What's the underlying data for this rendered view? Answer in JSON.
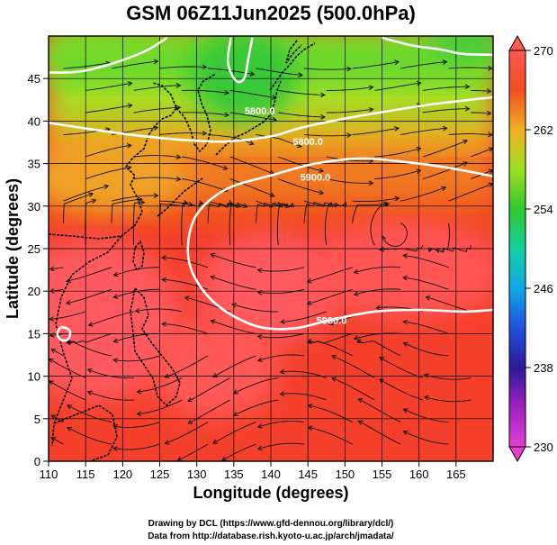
{
  "title": "GSM 06Z11Jun2025 (500.0hPa)",
  "chart_data": {
    "type": "heatmap",
    "title": "GSM 06Z11Jun2025 (500.0hPa)",
    "xlabel": "Longitude (degrees)",
    "ylabel": "Latitude  (degrees)",
    "xlim": [
      110,
      170
    ],
    "ylim": [
      0,
      50
    ],
    "x_ticks": [
      110,
      115,
      120,
      125,
      130,
      135,
      140,
      145,
      150,
      155,
      160,
      165
    ],
    "y_ticks": [
      0,
      5,
      10,
      15,
      20,
      25,
      30,
      35,
      40,
      45
    ],
    "grid": true,
    "colorbar": {
      "min": 230,
      "max": 270,
      "labels": [
        270,
        262,
        254,
        246,
        238,
        230
      ],
      "stops": [
        {
          "value": 230,
          "color": "#e040d0"
        },
        {
          "value": 234,
          "color": "#a020c0"
        },
        {
          "value": 238,
          "color": "#2a1a9a"
        },
        {
          "value": 242,
          "color": "#2050e0"
        },
        {
          "value": 246,
          "color": "#10a8e8"
        },
        {
          "value": 250,
          "color": "#10d0a0"
        },
        {
          "value": 254,
          "color": "#30c830"
        },
        {
          "value": 258,
          "color": "#9ce020"
        },
        {
          "value": 262,
          "color": "#f0b020"
        },
        {
          "value": 266,
          "color": "#f05020"
        },
        {
          "value": 270,
          "color": "#ff5555"
        }
      ]
    },
    "contours": [
      {
        "label": "5800.0",
        "points": [
          [
            110,
            39.8
          ],
          [
            116,
            39.0
          ],
          [
            122,
            38.3
          ],
          [
            128,
            37.8
          ],
          [
            134,
            37.6
          ],
          [
            140,
            38.2
          ],
          [
            144,
            39.2
          ],
          [
            150,
            40.3
          ],
          [
            156,
            41.2
          ],
          [
            162,
            42.0
          ],
          [
            170,
            42.8
          ]
        ]
      },
      {
        "label": "5900.0",
        "points": [
          [
            170,
            33.5
          ],
          [
            164,
            34.5
          ],
          [
            158,
            35.2
          ],
          [
            152,
            35.6
          ],
          [
            146,
            35.0
          ],
          [
            140,
            33.6
          ],
          [
            134,
            32.0
          ],
          [
            130,
            29.0
          ],
          [
            128.8,
            25.0
          ],
          [
            129.8,
            21.5
          ],
          [
            133,
            18.2
          ],
          [
            138,
            15.9
          ],
          [
            143,
            15.6
          ],
          [
            148,
            16.6
          ],
          [
            154,
            17.6
          ],
          [
            160,
            17.8
          ],
          [
            166,
            17.6
          ],
          [
            170,
            17.8
          ]
        ]
      },
      {
        "label": "",
        "points": [
          [
            110,
            45.7
          ],
          [
            114,
            45.8
          ],
          [
            118,
            46.6
          ],
          [
            123,
            48.2
          ],
          [
            126,
            49.8
          ]
        ]
      },
      {
        "label": "",
        "points": [
          [
            137.5,
            49.8
          ],
          [
            137.0,
            47.5
          ],
          [
            136.5,
            45.2
          ],
          [
            135.6,
            44.6
          ],
          [
            134.7,
            45.5
          ],
          [
            134.2,
            47.2
          ],
          [
            134.6,
            49.8
          ]
        ]
      },
      {
        "label": "",
        "points": [
          [
            155,
            49.8
          ],
          [
            159,
            48.9
          ],
          [
            163,
            48.4
          ],
          [
            166,
            47.9
          ],
          [
            170,
            47.8
          ]
        ]
      },
      {
        "label": "",
        "points": [
          [
            111.7,
            15.8
          ],
          [
            112.5,
            15.6
          ],
          [
            112.9,
            15.2
          ],
          [
            112.7,
            14.4
          ],
          [
            112.0,
            14.2
          ],
          [
            111.4,
            14.5
          ],
          [
            111.2,
            15.2
          ],
          [
            111.7,
            15.8
          ]
        ]
      }
    ],
    "contour_label_positions": [
      {
        "label": "5800.0",
        "lon": 138.5,
        "lat": 41.2
      },
      {
        "label": "5800.0",
        "lon": 145.0,
        "lat": 37.6
      },
      {
        "label": "5900.0",
        "lon": 146.0,
        "lat": 33.4
      },
      {
        "label": "5900.0",
        "lon": 148.2,
        "lat": 16.6
      }
    ]
  },
  "credits": {
    "line1": "Drawing by DCL (https://www.gfd-dennou.org/library/dcl/)",
    "line2": "Data from http://database.rish.kyoto-u.ac.jp/arch/jmadata/"
  }
}
